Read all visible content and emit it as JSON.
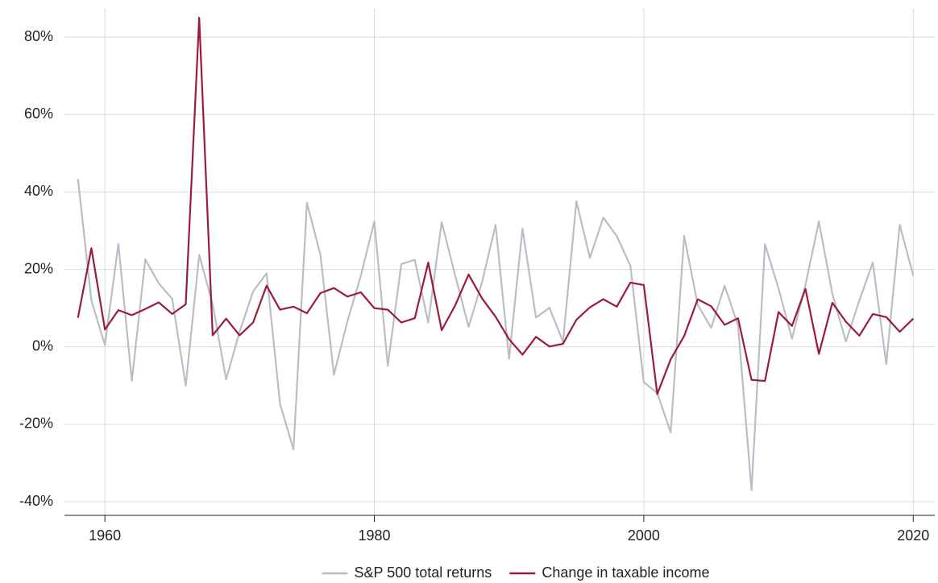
{
  "chart_data": {
    "type": "line",
    "x": [
      1958,
      1959,
      1960,
      1961,
      1962,
      1963,
      1964,
      1965,
      1966,
      1967,
      1968,
      1969,
      1970,
      1971,
      1972,
      1973,
      1974,
      1975,
      1976,
      1977,
      1978,
      1979,
      1980,
      1981,
      1982,
      1983,
      1984,
      1985,
      1986,
      1987,
      1988,
      1989,
      1990,
      1991,
      1992,
      1993,
      1994,
      1995,
      1996,
      1997,
      1998,
      1999,
      2000,
      2001,
      2002,
      2003,
      2004,
      2005,
      2006,
      2007,
      2008,
      2009,
      2010,
      2011,
      2012,
      2013,
      2014,
      2015,
      2016,
      2017,
      2018,
      2019,
      2020
    ],
    "series": [
      {
        "name": "S&P 500 total returns",
        "color": "#b9bec6",
        "values": [
          43.4,
          12,
          0.5,
          26.6,
          -8.8,
          22.6,
          16.4,
          12.4,
          -10,
          23.8,
          11,
          -8.4,
          3.9,
          14.3,
          19,
          -14.7,
          -26.5,
          37.2,
          23.8,
          -7.2,
          6.6,
          18.4,
          32.4,
          -4.9,
          21.4,
          22.5,
          6.3,
          32.2,
          18.5,
          5.2,
          16.8,
          31.5,
          -3.1,
          30.5,
          7.6,
          10.1,
          1.3,
          37.6,
          23,
          33.4,
          28.6,
          21,
          -9.1,
          -11.9,
          -22.1,
          28.7,
          10.9,
          4.9,
          15.8,
          5.5,
          -37,
          26.5,
          15.1,
          2.1,
          16,
          32.4,
          13.7,
          1.4,
          12,
          21.8,
          -4.4,
          31.5,
          18.4
        ]
      },
      {
        "name": "Change in taxable income",
        "color": "#9b1b3a",
        "values": [
          7.5,
          25.5,
          4.5,
          9.5,
          8.2,
          9.8,
          11.5,
          8.5,
          11,
          85,
          3,
          7.3,
          3,
          6.3,
          15.8,
          9.6,
          10.4,
          8.7,
          13.9,
          15.2,
          13,
          14.1,
          10,
          9.6,
          6.3,
          7.4,
          21.8,
          4.3,
          10.7,
          18.7,
          12.5,
          7.8,
          2,
          -2,
          2.6,
          0.1,
          0.8,
          7,
          10.2,
          12.3,
          10.4,
          16.6,
          16,
          -12.2,
          -3.2,
          2.8,
          12.3,
          10.5,
          5.7,
          7.4,
          -8.5,
          -8.8,
          9,
          5.4,
          15,
          -1.8,
          11.4,
          6.5,
          2.9,
          8.5,
          7.7,
          3.9,
          7.3
        ]
      }
    ],
    "xlim": [
      1957,
      2021.6
    ],
    "xticks": [
      1960,
      1980,
      2000,
      2020
    ],
    "ylim": [
      -43.5,
      87.5
    ],
    "yticks": [
      {
        "value": -40,
        "label": "-40%"
      },
      {
        "value": -20,
        "label": "-20%"
      },
      {
        "value": 0,
        "label": "0%"
      },
      {
        "value": 20,
        "label": "20%"
      },
      {
        "value": 40,
        "label": "40%"
      },
      {
        "value": 60,
        "label": "60%"
      },
      {
        "value": 80,
        "label": "80%"
      }
    ],
    "grid": true,
    "legend": "bottom"
  }
}
